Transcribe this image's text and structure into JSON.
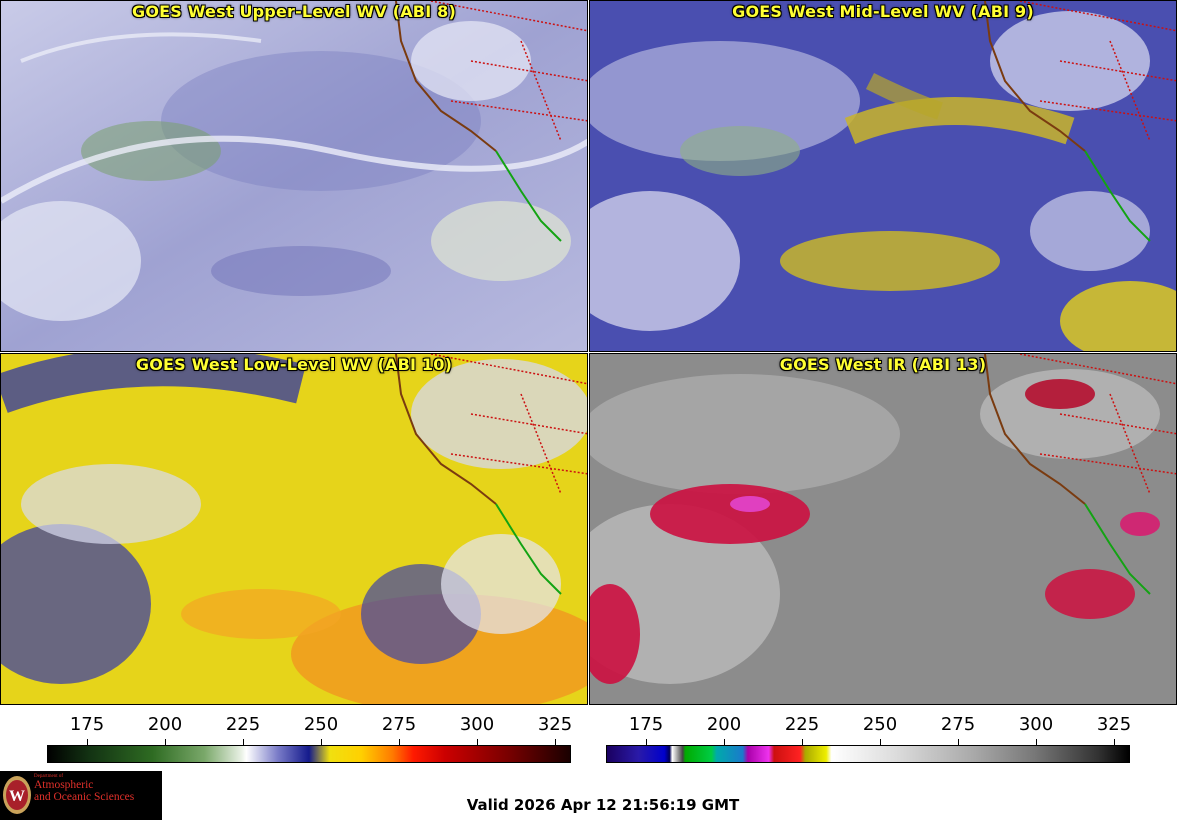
{
  "panels": [
    {
      "title": "GOES West Upper-Level WV (ABI 8)"
    },
    {
      "title": "GOES West Mid-Level WV (ABI 9)"
    },
    {
      "title": "GOES West Low-Level WV (ABI 10)"
    },
    {
      "title": "GOES West IR (ABI 13)"
    }
  ],
  "colorbars": [
    {
      "name": "water-vapor",
      "ticks": [
        "175",
        "200",
        "225",
        "250",
        "275",
        "300",
        "325"
      ]
    },
    {
      "name": "infrared",
      "ticks": [
        "175",
        "200",
        "225",
        "250",
        "275",
        "300",
        "325"
      ]
    }
  ],
  "logo": {
    "line_small": "Department of",
    "line1": "Atmospheric",
    "line2": "and Oceanic Sciences"
  },
  "valid_time": "Valid 2026 Apr 12 21:56:19 GMT",
  "colors": {
    "title_text": "#ffff33",
    "wv_background": "#a9abd8",
    "ir_background": "#8c8c8c",
    "coastline": "#7a3b10",
    "us_borders": "#cc1111",
    "mexico_coast": "#13a313"
  }
}
